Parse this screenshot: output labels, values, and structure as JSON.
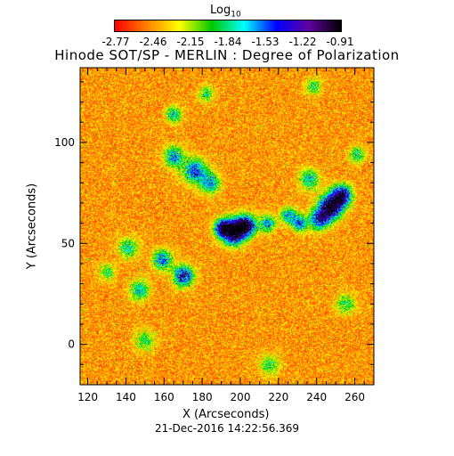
{
  "colorbar": {
    "title": "Log",
    "title_sub": "10",
    "ticks": [
      "-2.77",
      "-2.46",
      "-2.15",
      "-1.84",
      "-1.53",
      "-1.22",
      "-0.91"
    ]
  },
  "title": "Hinode SOT/SP - MERLIN : Degree of Polarization",
  "xlabel": "X (Arcseconds)",
  "ylabel": "Y (Arcseconds)",
  "timestamp": "21-Dec-2016 14:22:56.369",
  "axes": {
    "xrange": [
      116,
      270
    ],
    "yrange": [
      -20,
      137
    ],
    "xticks": [
      120,
      140,
      160,
      180,
      200,
      220,
      240,
      260
    ],
    "yticks": [
      0,
      50,
      100
    ]
  },
  "colormap": {
    "name": "rainbow (red to black)",
    "colors": [
      "#ff0000",
      "#ff8000",
      "#ffff00",
      "#00c800",
      "#00ffff",
      "#0000ff",
      "#6000a0",
      "#000000"
    ]
  }
}
